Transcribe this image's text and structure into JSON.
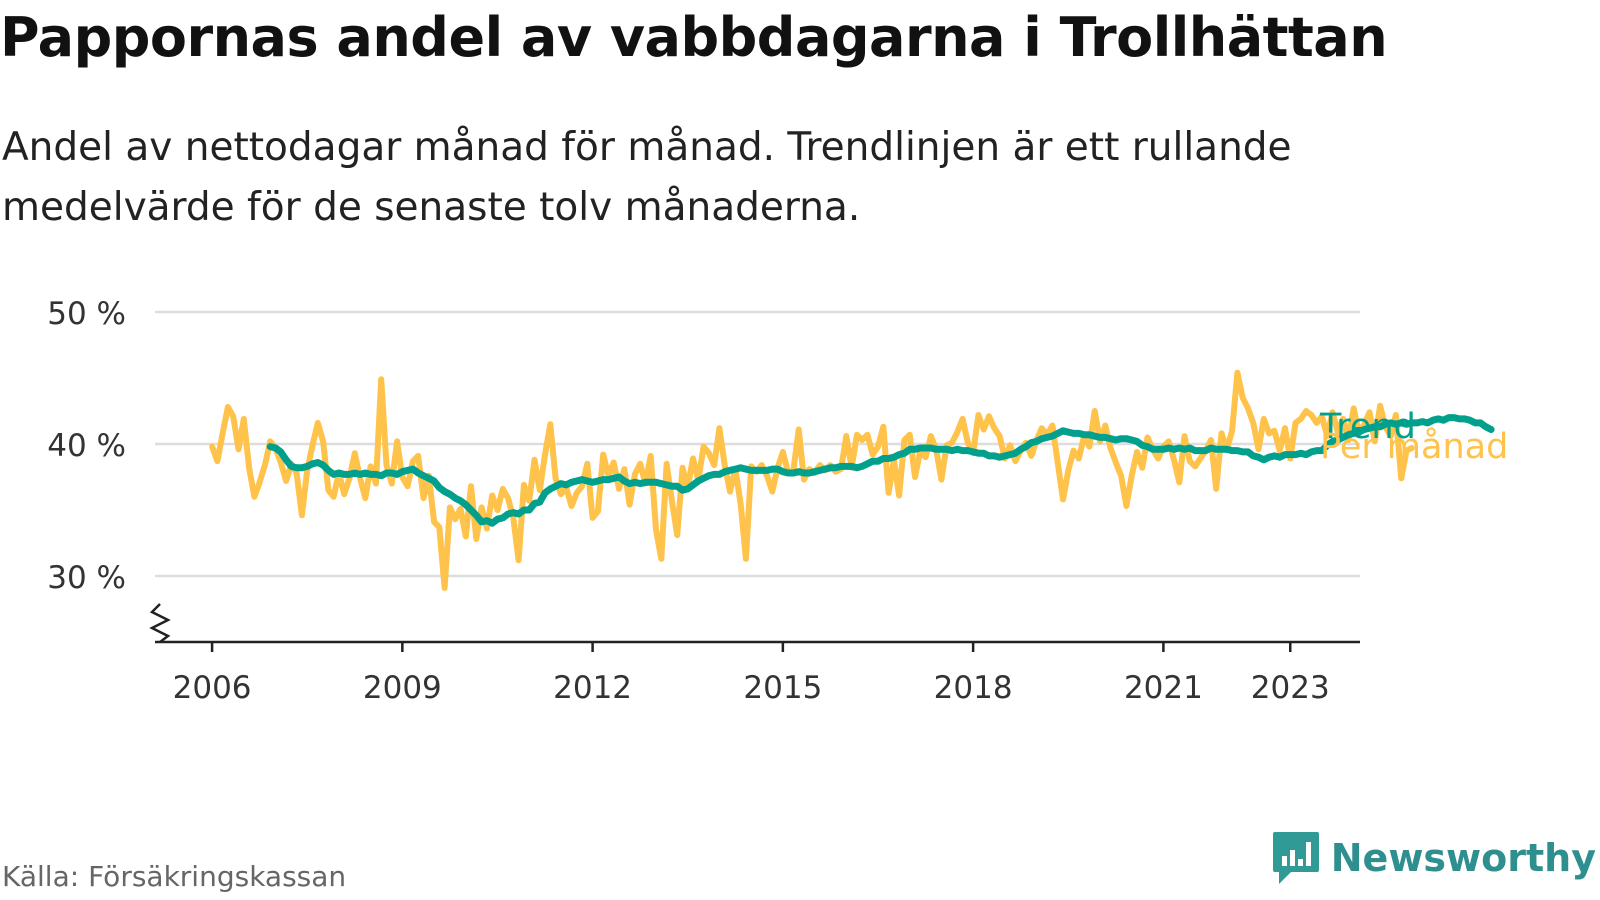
{
  "title": "Pappornas andel av vabbdagarna i Trollhättan",
  "subtitle": "Andel av nettodagar månad för månad. Trendlinjen är ett rullande medelvärde för de senaste tolv månaderna.",
  "source": "Källa: Försäkringskassan",
  "brand": {
    "name": "Newsworthy",
    "icon": "newsworthy-chart-icon",
    "color": "#2f9a96"
  },
  "colors": {
    "monthly": "#ffc24a",
    "trend": "#00a08c",
    "grid": "#dddddd",
    "axis": "#222222"
  },
  "chart_data": {
    "type": "line",
    "title": "Pappornas andel av vabbdagarna i Trollhättan",
    "ylabel": "",
    "xlabel": "",
    "ylim": [
      25,
      50
    ],
    "y_ticks": [
      30,
      40,
      50
    ],
    "y_tick_labels": [
      "30 %",
      "40 %",
      "50 %"
    ],
    "y_axis_break": true,
    "xlim": [
      2005.1,
      2024.1
    ],
    "x_ticks": [
      2006,
      2009,
      2012,
      2015,
      2018,
      2021,
      2023
    ],
    "x_tick_labels": [
      "2006",
      "2009",
      "2012",
      "2015",
      "2018",
      "2021",
      "2023"
    ],
    "grid": true,
    "series": [
      {
        "name": "Per månad",
        "color": "#ffc24a",
        "start": [
          2006,
          1
        ],
        "values": [
          39.8,
          38.7,
          40.8,
          42.8,
          42.1,
          39.6,
          41.9,
          38.2,
          36.0,
          37.1,
          38.4,
          40.2,
          39.7,
          38.6,
          37.2,
          38.5,
          37.8,
          34.6,
          38.0,
          39.9,
          41.6,
          40.2,
          36.5,
          36.0,
          37.8,
          36.2,
          37.4,
          39.3,
          37.4,
          35.9,
          38.3,
          37.0,
          44.9,
          38.4,
          37.0,
          40.2,
          37.5,
          36.8,
          38.7,
          39.1,
          35.9,
          37.6,
          34.1,
          33.7,
          29.1,
          35.2,
          34.3,
          35.1,
          33.0,
          36.8,
          32.8,
          35.2,
          33.6,
          36.1,
          35.0,
          36.6,
          35.9,
          34.4,
          31.2,
          36.9,
          35.7,
          38.8,
          36.5,
          39.2,
          41.5,
          37.4,
          36.2,
          36.7,
          35.3,
          36.3,
          36.8,
          38.5,
          34.4,
          34.9,
          39.2,
          37.6,
          38.6,
          36.6,
          38.1,
          35.4,
          37.7,
          38.5,
          37.0,
          39.1,
          33.5,
          31.3,
          38.5,
          35.7,
          33.1,
          38.2,
          36.7,
          38.9,
          37.3,
          39.8,
          39.3,
          38.4,
          41.2,
          38.4,
          36.4,
          38.1,
          35.5,
          31.3,
          38.3,
          37.9,
          38.4,
          37.6,
          36.4,
          38.2,
          39.4,
          37.8,
          38.0,
          41.1,
          37.3,
          38.1,
          37.8,
          38.4,
          38.0,
          38.4,
          37.9,
          38.1,
          40.6,
          38.2,
          40.7,
          40.3,
          40.7,
          39.2,
          39.8,
          41.3,
          36.3,
          38.8,
          36.1,
          40.3,
          40.7,
          37.5,
          39.5,
          39.0,
          40.6,
          39.6,
          37.3,
          39.9,
          40.1,
          40.9,
          41.9,
          40.1,
          39.3,
          42.2,
          41.1,
          42.1,
          41.2,
          40.6,
          38.9,
          39.9,
          38.7,
          39.5,
          40.1,
          39.1,
          40.3,
          41.2,
          40.7,
          41.4,
          38.6,
          35.8,
          38.0,
          39.5,
          38.9,
          40.6,
          39.8,
          42.5,
          40.2,
          41.4,
          39.7,
          38.6,
          37.6,
          35.3,
          37.6,
          39.4,
          38.2,
          40.5,
          39.6,
          38.9,
          39.8,
          40.2,
          38.8,
          37.1,
          40.6,
          38.7,
          38.3,
          38.9,
          39.5,
          40.3,
          36.6,
          40.8,
          39.6,
          41.0,
          45.4,
          43.5,
          42.7,
          41.6,
          39.6,
          41.9,
          40.8,
          41.0,
          39.5,
          41.2,
          38.9,
          41.6,
          41.9,
          42.5,
          42.2,
          41.6,
          42.1,
          40.6,
          42.4,
          40.9,
          41.9,
          40.3,
          42.7,
          40.8,
          41.5,
          42.4,
          40.2,
          42.9,
          41.3,
          40.6,
          42.2,
          37.4,
          39.5,
          39.7
        ],
        "trend_note": ""
      },
      {
        "name": "Trend",
        "color": "#00a08c",
        "start": [
          2006,
          12
        ],
        "values": [
          39.8,
          39.7,
          39.4,
          38.8,
          38.3,
          38.2,
          38.2,
          38.3,
          38.5,
          38.6,
          38.4,
          38.0,
          37.7,
          37.8,
          37.7,
          37.7,
          37.8,
          37.7,
          37.8,
          37.7,
          37.7,
          37.6,
          37.8,
          37.8,
          37.7,
          37.9,
          38.0,
          38.1,
          37.8,
          37.6,
          37.4,
          37.2,
          36.7,
          36.4,
          36.2,
          35.9,
          35.7,
          35.4,
          35.0,
          34.6,
          34.1,
          34.2,
          34.0,
          34.3,
          34.4,
          34.7,
          34.8,
          34.7,
          35.0,
          35.0,
          35.5,
          35.6,
          36.3,
          36.6,
          36.8,
          37.0,
          36.9,
          37.1,
          37.2,
          37.3,
          37.2,
          37.1,
          37.2,
          37.3,
          37.3,
          37.4,
          37.5,
          37.2,
          37.0,
          37.1,
          37.0,
          37.1,
          37.1,
          37.1,
          37.0,
          36.9,
          36.8,
          36.8,
          36.5,
          36.6,
          36.9,
          37.2,
          37.4,
          37.6,
          37.7,
          37.7,
          37.9,
          38.0,
          38.1,
          38.2,
          38.1,
          38.0,
          38.0,
          38.0,
          38.0,
          38.1,
          38.1,
          37.9,
          37.8,
          37.8,
          37.9,
          37.8,
          37.8,
          37.9,
          38.0,
          38.1,
          38.2,
          38.2,
          38.3,
          38.3,
          38.3,
          38.2,
          38.3,
          38.5,
          38.7,
          38.7,
          38.9,
          38.9,
          39.0,
          39.2,
          39.3,
          39.6,
          39.6,
          39.7,
          39.7,
          39.7,
          39.6,
          39.6,
          39.6,
          39.5,
          39.6,
          39.5,
          39.5,
          39.4,
          39.3,
          39.3,
          39.1,
          39.1,
          39.0,
          39.1,
          39.2,
          39.3,
          39.6,
          39.8,
          40.1,
          40.2,
          40.4,
          40.5,
          40.6,
          40.8,
          41.0,
          40.9,
          40.8,
          40.8,
          40.7,
          40.7,
          40.6,
          40.5,
          40.5,
          40.4,
          40.3,
          40.4,
          40.4,
          40.3,
          40.2,
          39.9,
          39.8,
          39.6,
          39.6,
          39.6,
          39.7,
          39.6,
          39.7,
          39.6,
          39.7,
          39.5,
          39.5,
          39.5,
          39.7,
          39.6,
          39.6,
          39.6,
          39.5,
          39.5,
          39.4,
          39.4,
          39.1,
          39.0,
          38.8,
          39.0,
          39.1,
          39.0,
          39.2,
          39.2,
          39.2,
          39.3,
          39.2,
          39.4,
          39.5,
          39.5,
          39.9,
          40.2,
          40.3,
          40.5,
          40.7,
          40.8,
          40.9,
          41.1,
          41.2,
          41.3,
          41.3,
          41.5,
          41.6,
          41.5,
          41.6,
          41.5,
          41.6,
          41.6,
          41.7,
          41.6,
          41.8,
          41.9,
          41.8,
          42.0,
          42.0,
          41.9,
          41.9,
          41.8,
          41.6,
          41.6,
          41.3,
          41.1
        ]
      }
    ],
    "series_labels": [
      {
        "text": "Trend",
        "color": "#00a08c"
      },
      {
        "text": "Per månad",
        "color": "#ffc24a"
      }
    ]
  }
}
